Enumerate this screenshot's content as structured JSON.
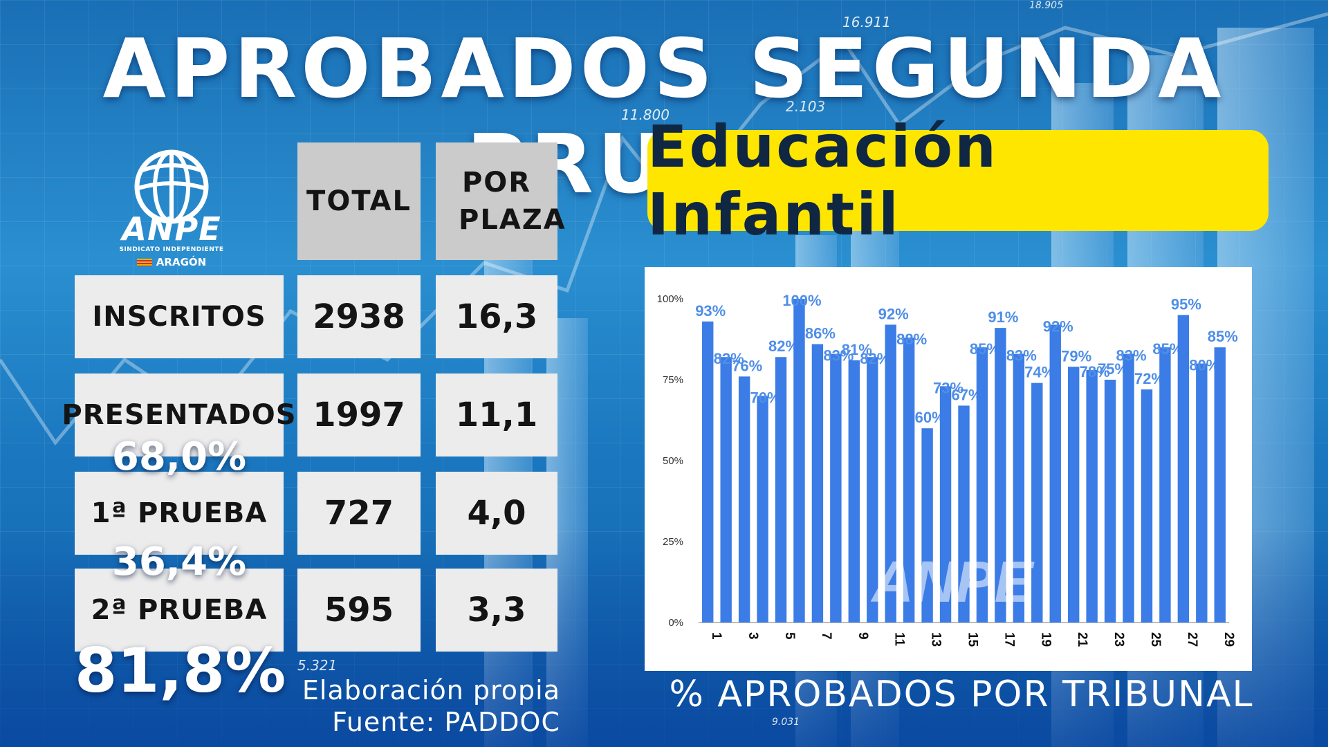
{
  "title": "APROBADOS SEGUNDA PRUEBA",
  "subtitle": "Educación Infantil",
  "logo": {
    "name": "ANPE",
    "sub": "SINDICATO INDEPENDIENTE",
    "region": "ARAGÓN"
  },
  "table": {
    "headers": [
      "TOTAL",
      "POR PLAZA"
    ],
    "rows": [
      {
        "label": "INSCRITOS",
        "total": "2938",
        "per_plaza": "16,3"
      },
      {
        "label": "PRESENTADOS",
        "total": "1997",
        "per_plaza": "11,1",
        "pct": "68,0%"
      },
      {
        "label": "1ª PRUEBA",
        "total": "727",
        "per_plaza": "4,0",
        "pct": "36,4%"
      },
      {
        "label": "2ª PRUEBA",
        "total": "595",
        "per_plaza": "3,3",
        "pct": "81,8%"
      }
    ]
  },
  "source": {
    "line1": "Elaboración propia",
    "line2": "Fuente: PADDOC"
  },
  "background_numbers": [
    "16.911",
    "11.800",
    "2.103",
    "5.321",
    "9.031",
    "18.905"
  ],
  "chart_caption": "% APROBADOS POR TRIBUNAL",
  "colors": {
    "bar": "#3b7ce6",
    "label": "#4f8ee8",
    "subtitle_bg": "#ffe600",
    "title": "#ffffff"
  },
  "chart_data": {
    "type": "bar",
    "categories": [
      "1",
      "2",
      "3",
      "4",
      "5",
      "6",
      "7",
      "8",
      "9",
      "10",
      "11",
      "12",
      "13",
      "14",
      "15",
      "16",
      "17",
      "18",
      "19",
      "20",
      "21",
      "22",
      "23",
      "24",
      "25",
      "26",
      "27",
      "28",
      "29"
    ],
    "x_tick_labels": [
      "1",
      "3",
      "5",
      "7",
      "9",
      "11",
      "13",
      "15",
      "17",
      "19",
      "21",
      "23",
      "25",
      "27",
      "29"
    ],
    "values": [
      93,
      82,
      76,
      70,
      82,
      100,
      86,
      83,
      81,
      82,
      92,
      88,
      60,
      73,
      67,
      85,
      91,
      83,
      74,
      92,
      79,
      78,
      75,
      83,
      72,
      85,
      95,
      80,
      85
    ],
    "data_labels": [
      "93%",
      "82%",
      "76%",
      "70%",
      "82%",
      "100%",
      "86%",
      "83%",
      "81%",
      "82%",
      "92%",
      "88%",
      "60%",
      "73%",
      "67%",
      "85%",
      "91%",
      "83%",
      "74%",
      "92%",
      "79%",
      "78%",
      "75%",
      "83%",
      "72%",
      "85%",
      "95%",
      "80%",
      "85%"
    ],
    "y_ticks": [
      "0%",
      "25%",
      "50%",
      "75%",
      "100%"
    ],
    "ylim": [
      0,
      100
    ],
    "grid": false,
    "watermark": "ANPE"
  }
}
